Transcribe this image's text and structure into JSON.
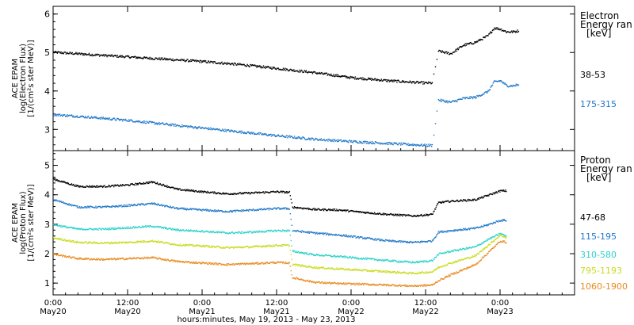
{
  "chart_data": [
    {
      "type": "scatter",
      "ylabel": [
        "ACE EPAM",
        "log(Electron Flux)",
        "[1/(cm²s ster MeV)]"
      ],
      "ylim": [
        2.45,
        6.2
      ],
      "yticks": [
        3,
        4,
        5,
        6
      ],
      "legend_title": [
        "Electron",
        "Energy ran",
        "[keV]"
      ],
      "legend_placement": "right",
      "series": [
        {
          "name": "38-53",
          "color": "#000000",
          "x": [
            0,
            6,
            12,
            18,
            24,
            30,
            36,
            42,
            48,
            54,
            60,
            61,
            62,
            64,
            66,
            68,
            70,
            71,
            72,
            73,
            74,
            75
          ],
          "values": [
            5.02,
            4.96,
            4.9,
            4.84,
            4.78,
            4.7,
            4.6,
            4.49,
            4.36,
            4.28,
            4.22,
            4.22,
            5.05,
            4.98,
            5.2,
            5.28,
            5.45,
            5.65,
            5.62,
            5.55,
            5.55,
            5.58
          ]
        },
        {
          "name": "175-315",
          "color": "#1f78c8",
          "x": [
            0,
            6,
            12,
            18,
            24,
            30,
            36,
            42,
            48,
            54,
            60,
            61,
            62,
            64,
            66,
            68,
            70,
            71,
            72,
            73,
            74,
            75
          ],
          "values": [
            3.4,
            3.33,
            3.25,
            3.15,
            3.05,
            2.95,
            2.85,
            2.76,
            2.7,
            2.65,
            2.6,
            2.6,
            3.78,
            3.72,
            3.82,
            3.85,
            4.0,
            4.25,
            4.28,
            4.15,
            4.15,
            4.18
          ]
        }
      ]
    },
    {
      "type": "scatter",
      "ylabel": [
        "ACE EPAM",
        "log(Proton Flux)",
        "[1/(cm²s ster MeV)]"
      ],
      "ylim": [
        0.6,
        5.5
      ],
      "yticks": [
        1,
        2,
        3,
        4,
        5
      ],
      "legend_title": [
        "Proton",
        "Energy ran",
        "[keV]"
      ],
      "legend_placement": "right",
      "xlabel": "hours:minutes, May 19, 2013 - May 23, 2013",
      "xlim": [
        0,
        84
      ],
      "xticks": [
        {
          "x": 0,
          "label": "0:00",
          "sub": "May20"
        },
        {
          "x": 12,
          "label": "12:00",
          "sub": "May20"
        },
        {
          "x": 24,
          "label": "0:00",
          "sub": "May21"
        },
        {
          "x": 36,
          "label": "12:00",
          "sub": "May21"
        },
        {
          "x": 48,
          "label": "0:00",
          "sub": "May22"
        },
        {
          "x": 60,
          "label": "12:00",
          "sub": "May22"
        },
        {
          "x": 72,
          "label": "0:00",
          "sub": "May23"
        }
      ],
      "series": [
        {
          "name": "47-68",
          "color": "#000000",
          "x": [
            0,
            4,
            8,
            12,
            16,
            20,
            24,
            28,
            32,
            36,
            38,
            38.5,
            42,
            46,
            50,
            54,
            58,
            61,
            62,
            64,
            68,
            70,
            72,
            73
          ],
          "values": [
            4.55,
            4.3,
            4.3,
            4.35,
            4.45,
            4.2,
            4.12,
            4.05,
            4.08,
            4.12,
            4.1,
            3.6,
            3.52,
            3.5,
            3.42,
            3.35,
            3.3,
            3.35,
            3.75,
            3.8,
            3.85,
            4.0,
            4.15,
            4.15
          ]
        },
        {
          "name": "115-195",
          "color": "#1f78c8",
          "x": [
            0,
            4,
            8,
            12,
            16,
            20,
            24,
            28,
            32,
            36,
            38,
            38.5,
            42,
            46,
            50,
            54,
            58,
            61,
            62,
            64,
            68,
            70,
            72,
            73
          ],
          "values": [
            3.85,
            3.6,
            3.6,
            3.65,
            3.72,
            3.55,
            3.5,
            3.45,
            3.5,
            3.55,
            3.55,
            2.8,
            2.72,
            2.65,
            2.55,
            2.45,
            2.4,
            2.45,
            2.75,
            2.8,
            2.88,
            3.0,
            3.15,
            3.15
          ]
        },
        {
          "name": "310-580",
          "color": "#2bd3c8",
          "x": [
            0,
            4,
            8,
            12,
            16,
            20,
            24,
            28,
            32,
            36,
            38,
            38.5,
            42,
            46,
            50,
            54,
            58,
            61,
            62,
            64,
            68,
            70,
            72,
            73
          ],
          "values": [
            3.0,
            2.85,
            2.85,
            2.9,
            2.95,
            2.82,
            2.78,
            2.72,
            2.75,
            2.8,
            2.8,
            2.1,
            1.98,
            1.92,
            1.85,
            1.78,
            1.72,
            1.78,
            2.0,
            2.1,
            2.25,
            2.5,
            2.7,
            2.6
          ]
        },
        {
          "name": "795-1193",
          "color": "#c8dc1e",
          "x": [
            0,
            4,
            8,
            12,
            16,
            20,
            24,
            28,
            32,
            36,
            38,
            38.5,
            42,
            46,
            50,
            54,
            58,
            61,
            62,
            64,
            68,
            70,
            72,
            73
          ],
          "values": [
            2.55,
            2.4,
            2.38,
            2.4,
            2.45,
            2.32,
            2.28,
            2.22,
            2.25,
            2.3,
            2.3,
            1.65,
            1.55,
            1.5,
            1.45,
            1.4,
            1.35,
            1.4,
            1.55,
            1.7,
            1.95,
            2.3,
            2.65,
            2.55
          ]
        },
        {
          "name": "1060-1900",
          "color": "#e88a1e",
          "x": [
            0,
            4,
            8,
            12,
            16,
            20,
            24,
            28,
            32,
            36,
            38,
            38.5,
            42,
            46,
            50,
            54,
            58,
            61,
            62,
            64,
            68,
            70,
            72,
            73
          ],
          "values": [
            2.0,
            1.85,
            1.82,
            1.85,
            1.88,
            1.75,
            1.7,
            1.65,
            1.68,
            1.72,
            1.7,
            1.2,
            1.05,
            1.0,
            0.98,
            0.95,
            0.92,
            0.95,
            1.1,
            1.3,
            1.65,
            2.05,
            2.45,
            2.4
          ]
        }
      ]
    }
  ]
}
